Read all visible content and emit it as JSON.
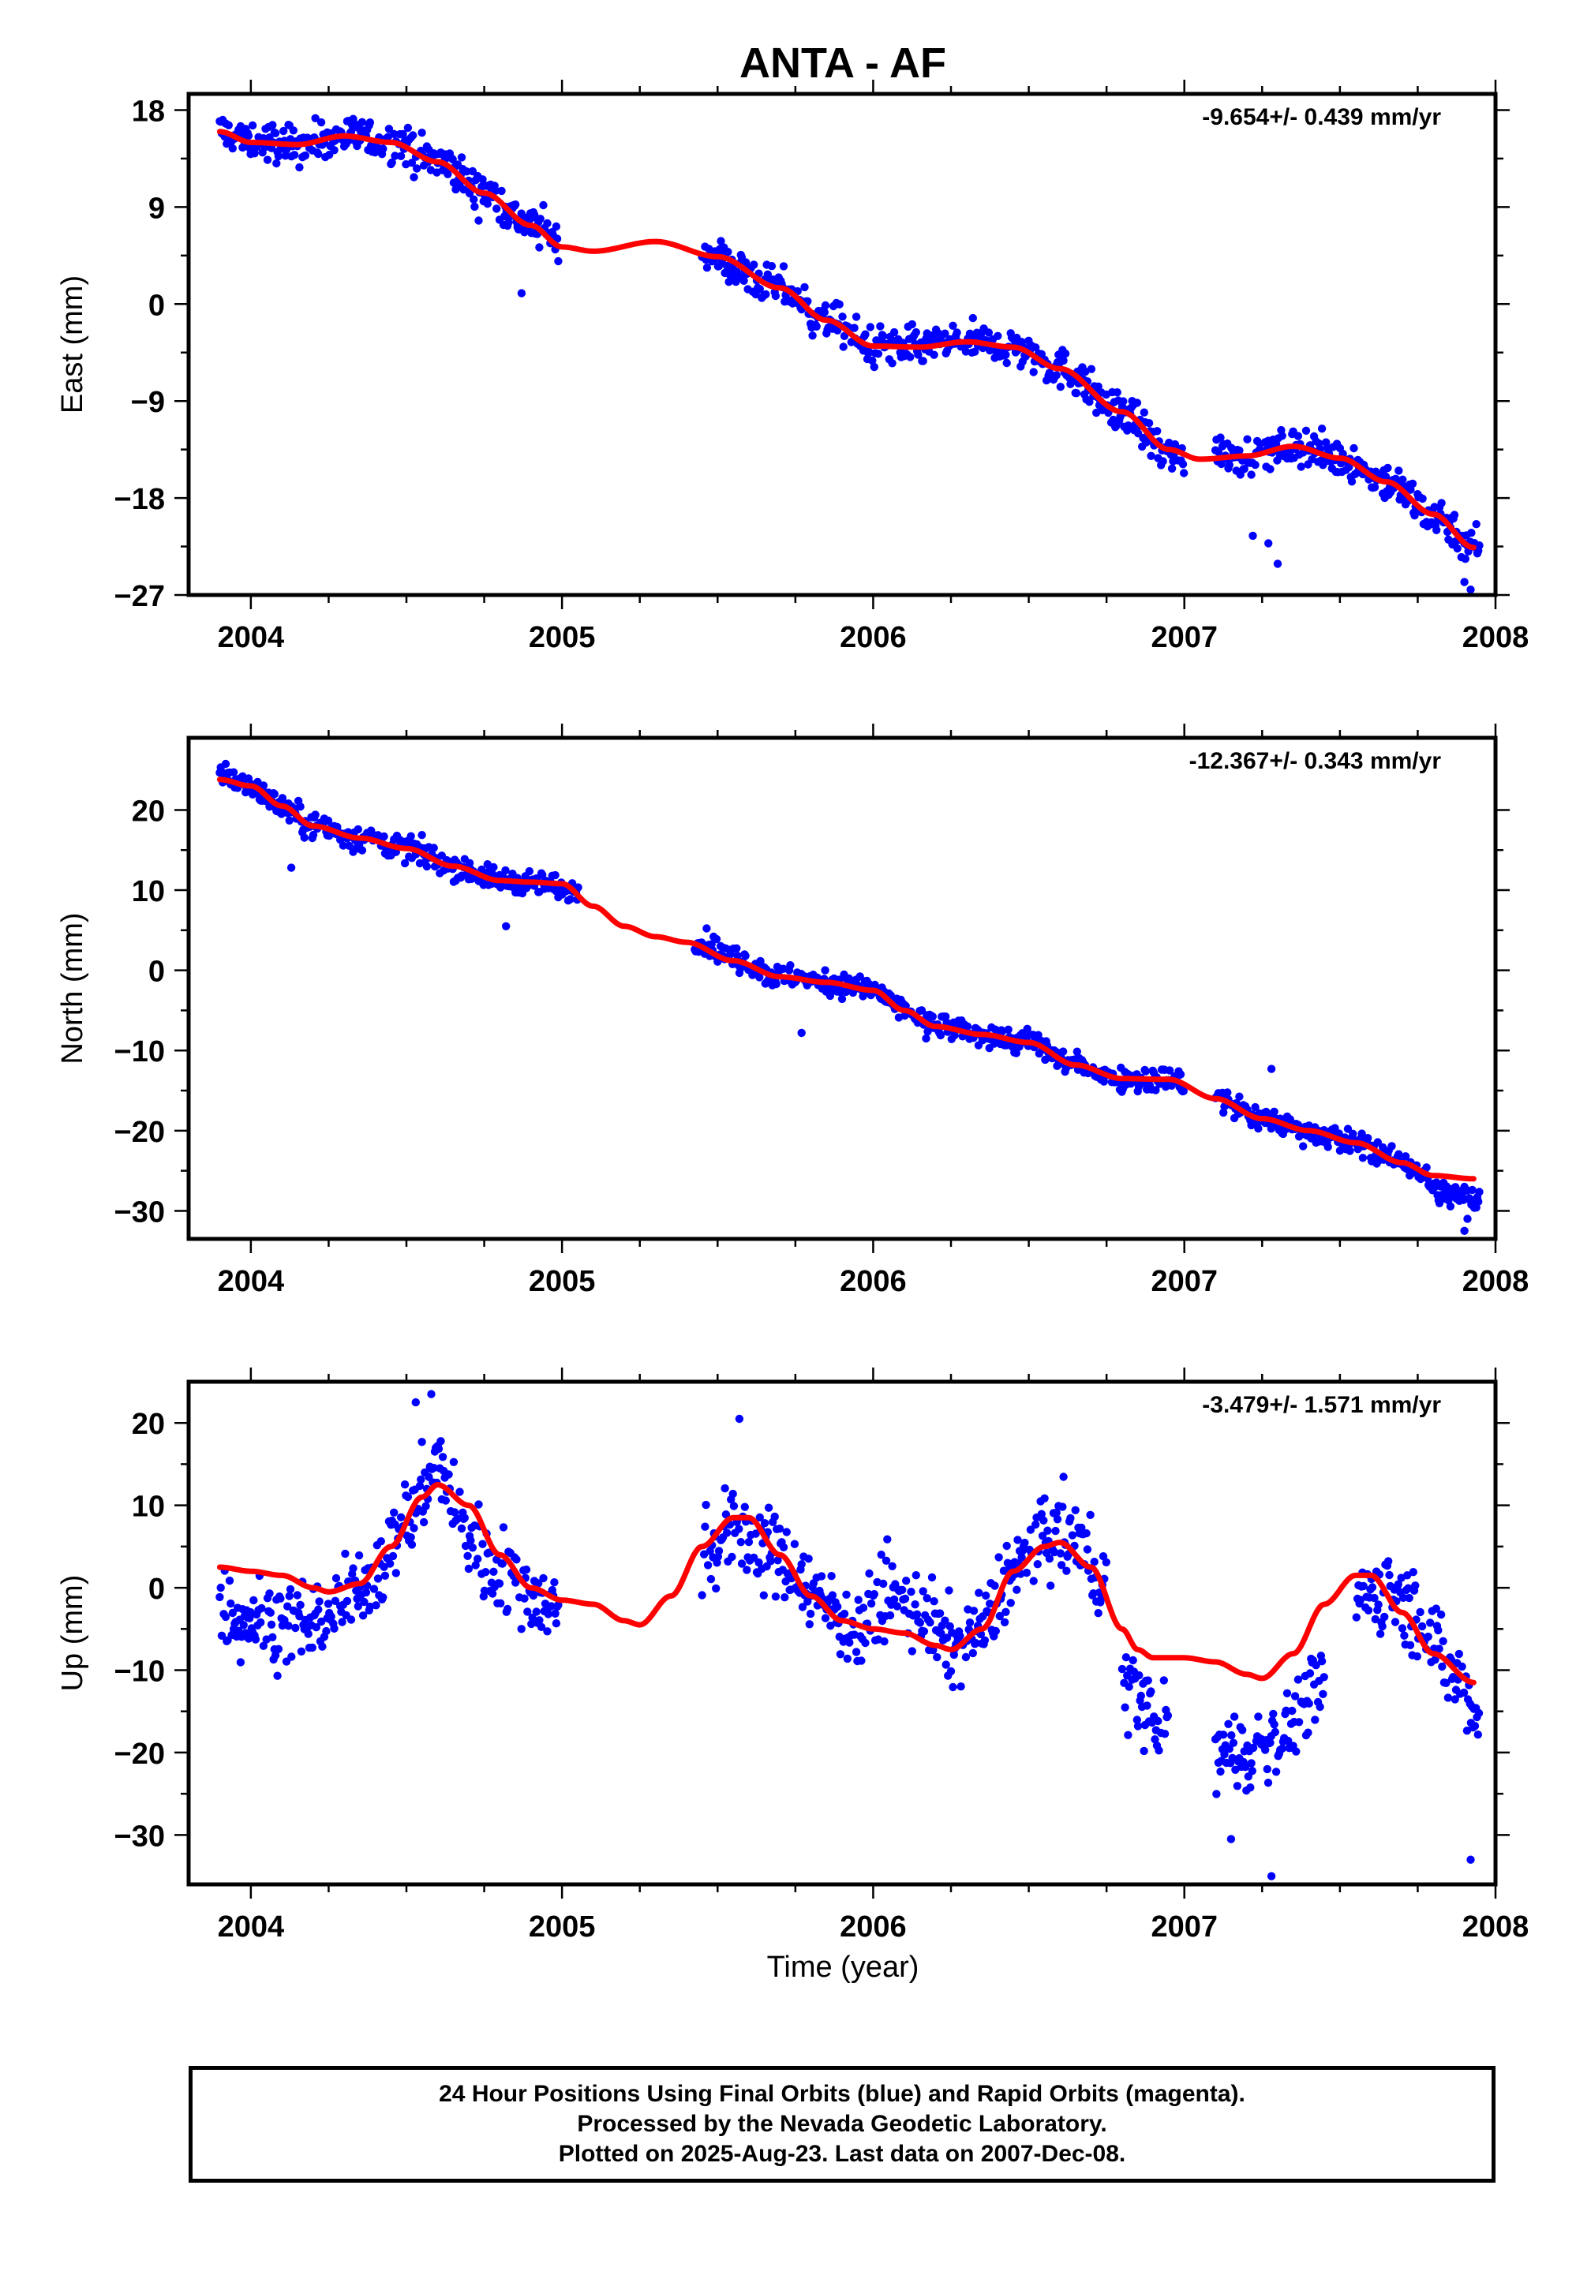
{
  "chart_data": {
    "title": "ANTA - AF",
    "xlabel": "Time (year)",
    "x_ticks": [
      2004,
      2005,
      2006,
      2007,
      2008
    ],
    "xlim": [
      2003.8,
      2008.0
    ],
    "colors": {
      "points": "#0000ff",
      "fit": "#ff0000",
      "frame": "#000000"
    },
    "footer": [
      "24 Hour Positions Using Final Orbits (blue) and Rapid Orbits (magenta).",
      "Processed by the Nevada Geodetic Laboratory.",
      "Plotted on 2025-Aug-23. Last data on 2007-Dec-08."
    ],
    "panels": [
      {
        "type": "scatter",
        "ylabel": "East (mm)",
        "rate": "-9.654+/- 0.439 mm/yr",
        "ylim": [
          -27,
          19.5
        ],
        "y_ticks": [
          18,
          9,
          0,
          -9,
          -18,
          -27
        ],
        "y_tick_labels": [
          "18",
          "9",
          "0",
          "−9",
          "−18",
          "−27"
        ],
        "scatter_ranges": [
          [
            2003.9,
            2004.99
          ],
          [
            2005.45,
            2007.0
          ],
          [
            2007.1,
            2007.95
          ]
        ],
        "fit": {
          "x": [
            2003.9,
            2004.0,
            2004.15,
            2004.3,
            2004.45,
            2004.6,
            2004.75,
            2004.9,
            2005.0,
            2005.1,
            2005.3,
            2005.5,
            2005.7,
            2005.85,
            2006.0,
            2006.15,
            2006.3,
            2006.45,
            2006.6,
            2006.8,
            2006.95,
            2007.05,
            2007.2,
            2007.35,
            2007.5,
            2007.65,
            2007.8,
            2007.93
          ],
          "y": [
            16.0,
            15.0,
            14.8,
            15.6,
            15.0,
            13.2,
            10.3,
            7.3,
            5.3,
            4.9,
            5.8,
            4.4,
            1.5,
            -1.5,
            -3.9,
            -4.0,
            -3.5,
            -4.0,
            -6.0,
            -10.0,
            -13.5,
            -14.4,
            -14.1,
            -13.2,
            -14.3,
            -16.5,
            -19.5,
            -22.6
          ]
        },
        "anchors": {
          "x": [
            2003.9,
            2004.0,
            2004.15,
            2004.3,
            2004.45,
            2004.6,
            2004.75,
            2004.9,
            2005.0,
            2005.45,
            2005.7,
            2005.85,
            2006.0,
            2006.15,
            2006.3,
            2006.45,
            2006.6,
            2006.8,
            2006.95,
            2007.1,
            2007.2,
            2007.35,
            2007.5,
            2007.65,
            2007.8,
            2007.95
          ],
          "y": [
            16.0,
            15.0,
            14.8,
            15.6,
            15.0,
            13.2,
            10.3,
            7.3,
            5.8,
            4.6,
            1.5,
            -1.5,
            -3.9,
            -4.0,
            -3.5,
            -4.0,
            -6.0,
            -10.0,
            -14.0,
            -13.5,
            -14.1,
            -13.2,
            -14.3,
            -16.5,
            -19.5,
            -22.8
          ]
        },
        "noise": 1.3,
        "outliers": {
          "x": [
            2004.87,
            2007.22,
            2007.27,
            2007.3,
            2007.9,
            2007.92
          ],
          "y": [
            1.0,
            -21.5,
            -22.2,
            -24.1,
            -25.8,
            -26.5
          ]
        }
      },
      {
        "type": "scatter",
        "ylabel": "North (mm)",
        "rate": "-12.367+/- 0.343 mm/yr",
        "ylim": [
          -33.5,
          29
        ],
        "y_ticks": [
          20,
          10,
          0,
          -10,
          -20,
          -30
        ],
        "y_tick_labels": [
          "20",
          "10",
          "0",
          "−10",
          "−20",
          "−30"
        ],
        "scatter_ranges": [
          [
            2003.9,
            2005.06
          ],
          [
            2005.42,
            2007.0
          ],
          [
            2007.1,
            2007.95
          ]
        ],
        "fit": {
          "x": [
            2003.9,
            2004.0,
            2004.1,
            2004.2,
            2004.35,
            2004.5,
            2004.65,
            2004.8,
            2004.9,
            2005.0,
            2005.1,
            2005.2,
            2005.3,
            2005.4,
            2005.55,
            2005.7,
            2005.85,
            2006.0,
            2006.1,
            2006.2,
            2006.35,
            2006.5,
            2006.65,
            2006.8,
            2006.95,
            2007.1,
            2007.25,
            2007.4,
            2007.55,
            2007.7,
            2007.8,
            2007.93
          ],
          "y": [
            23.8,
            23.0,
            20.5,
            18.0,
            16.5,
            15.2,
            13.0,
            11.2,
            11.0,
            10.8,
            8.0,
            5.5,
            4.2,
            3.5,
            1.2,
            -0.8,
            -1.5,
            -2.5,
            -5.0,
            -7.0,
            -8.0,
            -9.0,
            -11.8,
            -13.5,
            -13.6,
            -16.0,
            -18.5,
            -20.0,
            -21.5,
            -24.0,
            -25.6,
            -26.0
          ]
        },
        "anchors": {
          "x": [
            2003.9,
            2004.0,
            2004.1,
            2004.2,
            2004.35,
            2004.5,
            2004.65,
            2004.8,
            2004.9,
            2005.05,
            2005.45,
            2005.55,
            2005.7,
            2005.85,
            2006.0,
            2006.1,
            2006.2,
            2006.35,
            2006.5,
            2006.65,
            2006.8,
            2006.95,
            2007.1,
            2007.25,
            2007.4,
            2007.55,
            2007.7,
            2007.85,
            2007.95
          ],
          "y": [
            24.5,
            23.0,
            20.5,
            18.0,
            16.5,
            15.2,
            13.0,
            11.2,
            11.0,
            10.0,
            3.5,
            1.5,
            -0.8,
            -1.5,
            -2.5,
            -5.0,
            -7.0,
            -8.0,
            -9.0,
            -11.8,
            -13.5,
            -13.6,
            -16.0,
            -18.5,
            -20.0,
            -21.5,
            -24.0,
            -28.0,
            -28.5
          ]
        },
        "noise": 1.1,
        "outliers": {
          "x": [
            2004.13,
            2004.82,
            2005.77,
            2006.17,
            2007.28,
            2007.5,
            2007.9,
            2007.91
          ],
          "y": [
            12.8,
            5.5,
            -7.8,
            -8.5,
            -12.3,
            -22.5,
            -32.5,
            -31.0
          ]
        }
      },
      {
        "type": "scatter",
        "ylabel": "Up (mm)",
        "rate": "-3.479+/- 1.571 mm/yr",
        "ylim": [
          -36,
          25
        ],
        "y_ticks": [
          20,
          10,
          0,
          -10,
          -20,
          -30
        ],
        "y_tick_labels": [
          "20",
          "10",
          "0",
          "−10",
          "−20",
          "−30"
        ],
        "scatter_ranges": [
          [
            2003.9,
            2004.99
          ],
          [
            2005.45,
            2006.75
          ],
          [
            2006.8,
            2006.95
          ],
          [
            2007.1,
            2007.45
          ],
          [
            2007.55,
            2007.95
          ]
        ],
        "fit": {
          "x": [
            2003.9,
            2004.0,
            2004.1,
            2004.2,
            2004.25,
            2004.35,
            2004.45,
            2004.55,
            2004.6,
            2004.7,
            2004.8,
            2004.9,
            2005.0,
            2005.1,
            2005.2,
            2005.25,
            2005.35,
            2005.45,
            2005.55,
            2005.6,
            2005.7,
            2005.8,
            2005.9,
            2006.0,
            2006.1,
            2006.2,
            2006.25,
            2006.35,
            2006.45,
            2006.55,
            2006.6,
            2006.7,
            2006.8,
            2006.85,
            2006.9,
            2007.0,
            2007.1,
            2007.2,
            2007.25,
            2007.35,
            2007.45,
            2007.55,
            2007.6,
            2007.7,
            2007.8,
            2007.93
          ],
          "y": [
            2.5,
            2.0,
            1.5,
            0.0,
            -0.5,
            0.5,
            5.0,
            11.0,
            12.5,
            10.0,
            4.0,
            0.0,
            -1.5,
            -2.0,
            -4.0,
            -4.5,
            -1.0,
            5.0,
            8.5,
            8.5,
            4.0,
            -1.0,
            -4.0,
            -5.0,
            -5.5,
            -7.0,
            -7.5,
            -5.0,
            2.0,
            5.0,
            5.5,
            2.5,
            -5.0,
            -7.5,
            -8.5,
            -8.5,
            -9.0,
            -10.5,
            -11.0,
            -8.0,
            -2.0,
            1.5,
            1.5,
            -3.0,
            -8.0,
            -11.5
          ]
        },
        "anchors": {
          "x": [
            2003.9,
            2004.0,
            2004.1,
            2004.2,
            2004.3,
            2004.4,
            2004.5,
            2004.6,
            2004.7,
            2004.8,
            2004.9,
            2004.99,
            2005.45,
            2005.55,
            2005.65,
            2005.75,
            2005.85,
            2005.95,
            2006.05,
            2006.15,
            2006.25,
            2006.35,
            2006.45,
            2006.55,
            2006.65,
            2006.75,
            2006.8,
            2006.95,
            2007.1,
            2007.2,
            2007.3,
            2007.45,
            2007.55,
            2007.65,
            2007.75,
            2007.85,
            2007.95
          ],
          "y": [
            -3.0,
            -3.5,
            -4.0,
            -4.0,
            -2.0,
            2.0,
            8.0,
            15.0,
            6.0,
            2.0,
            -1.0,
            -2.0,
            4.0,
            7.0,
            5.0,
            2.0,
            -2.0,
            -5.0,
            -1.0,
            -3.0,
            -7.0,
            -5.0,
            2.0,
            6.0,
            6.0,
            0.0,
            -12.0,
            -17.0,
            -20.0,
            -20.0,
            -18.0,
            -12.0,
            -1.0,
            0.0,
            -3.0,
            -10.0,
            -15.0
          ]
        },
        "noise": 3.6,
        "outliers": {
          "x": [
            2004.53,
            2004.58,
            2005.57,
            2007.15,
            2007.28,
            2007.92
          ],
          "y": [
            22.5,
            23.5,
            20.5,
            -30.5,
            -35.0,
            -33.0
          ]
        }
      }
    ]
  }
}
